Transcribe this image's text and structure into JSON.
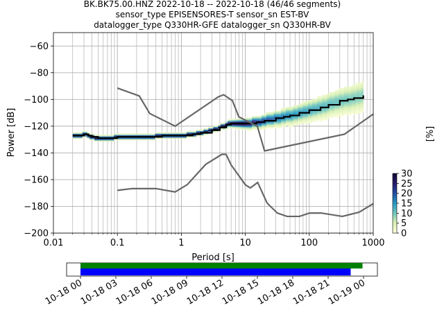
{
  "title": {
    "line1": "BK.BK75.00.HNZ   2022-10-18 -- 2022-10-18  (46/46 segments)",
    "line2": "sensor_type EPISENSORES-T sensor_sn EST-BV",
    "line3": "datalogger_type Q330HR-GFE datalogger_sn Q330HR-BV"
  },
  "colors": {
    "median": "#000000",
    "noise_models": "#666666",
    "grid": "#b0b0b0",
    "coverage_data": "#008000",
    "coverage_traces": "#0000ff"
  },
  "chart_data": [
    {
      "type": "heatmap",
      "subtype": "probabilistic-power-spectral-density",
      "xlabel": "Period [s]",
      "ylabel": "Power [dB]",
      "xscale": "log",
      "xlim": [
        0.01,
        1000
      ],
      "ylim": [
        -200,
        -50
      ],
      "x_ticks": [
        0.01,
        0.1,
        1,
        10,
        100,
        1000
      ],
      "x_tick_labels": [
        "0.01",
        "0.1",
        "1",
        "10",
        "100",
        "1000"
      ],
      "y_ticks": [
        -200,
        -180,
        -160,
        -140,
        -120,
        -100,
        -80,
        -60
      ],
      "y_tick_labels": [
        "−200",
        "−180",
        "−160",
        "−140",
        "−120",
        "−100",
        "−80",
        "−60"
      ],
      "grid": true,
      "colorbar": {
        "label": "[%]",
        "range": [
          0,
          30
        ],
        "ticks": [
          0,
          5,
          10,
          15,
          20,
          25,
          30
        ],
        "tick_labels": [
          "0",
          "5",
          "10",
          "15",
          "20",
          "25",
          "30"
        ]
      },
      "series": [
        {
          "role": "median",
          "x": [
            0.02,
            0.025,
            0.03,
            0.035,
            0.04,
            0.05,
            0.06,
            0.08,
            0.1,
            0.15,
            0.2,
            0.3,
            0.5,
            0.8,
            1,
            1.5,
            2,
            3,
            4,
            5,
            6,
            8,
            10,
            15,
            20,
            30,
            40,
            50,
            70,
            100,
            150,
            200,
            300,
            400,
            500,
            700
          ],
          "y": [
            -127,
            -127,
            -126,
            -127,
            -128,
            -129,
            -129,
            -129,
            -128,
            -128,
            -128,
            -128,
            -127,
            -127,
            -127,
            -126,
            -125,
            -123,
            -121,
            -119,
            -118,
            -118,
            -118,
            -117,
            -116,
            -114,
            -113,
            -112,
            -110,
            -108,
            -106,
            -104,
            -101,
            -100,
            -99,
            -97
          ]
        },
        {
          "role": "new-high-noise-model",
          "x": [
            0.1,
            0.22,
            0.32,
            0.8,
            3.8,
            4.6,
            6.3,
            7.9,
            15.4,
            20,
            354.8,
            1000
          ],
          "y": [
            -91.5,
            -97.4,
            -110.5,
            -120,
            -98,
            -96.5,
            -101,
            -113,
            -120,
            -138.5,
            -126,
            -111
          ]
        },
        {
          "role": "new-low-noise-model",
          "x": [
            0.1,
            0.17,
            0.4,
            0.8,
            1.24,
            2.4,
            4.3,
            5,
            6,
            10,
            12,
            15.6,
            21.9,
            31.6,
            45,
            70,
            101,
            154,
            328,
            600,
            1000
          ],
          "y": [
            -168,
            -166.7,
            -166.7,
            -169.2,
            -163.7,
            -148.6,
            -141.1,
            -141.1,
            -149,
            -163.8,
            -166.2,
            -162.1,
            -177.5,
            -185,
            -187.5,
            -187.5,
            -185,
            -185,
            -187.5,
            -184.4,
            -178
          ]
        }
      ]
    },
    {
      "type": "timeline",
      "role": "data-coverage",
      "x_tick_labels": [
        "10-18 00",
        "10-18 03",
        "10-18 06",
        "10-18 09",
        "10-18 12",
        "10-18 15",
        "10-18 18",
        "10-18 21",
        "10-19 00"
      ],
      "series": [
        {
          "role": "data-coverage",
          "start_hour": 0,
          "end_hour": 24.5
        },
        {
          "role": "trace-coverage",
          "start_hour": 0,
          "end_hour": 23.5
        }
      ]
    }
  ]
}
